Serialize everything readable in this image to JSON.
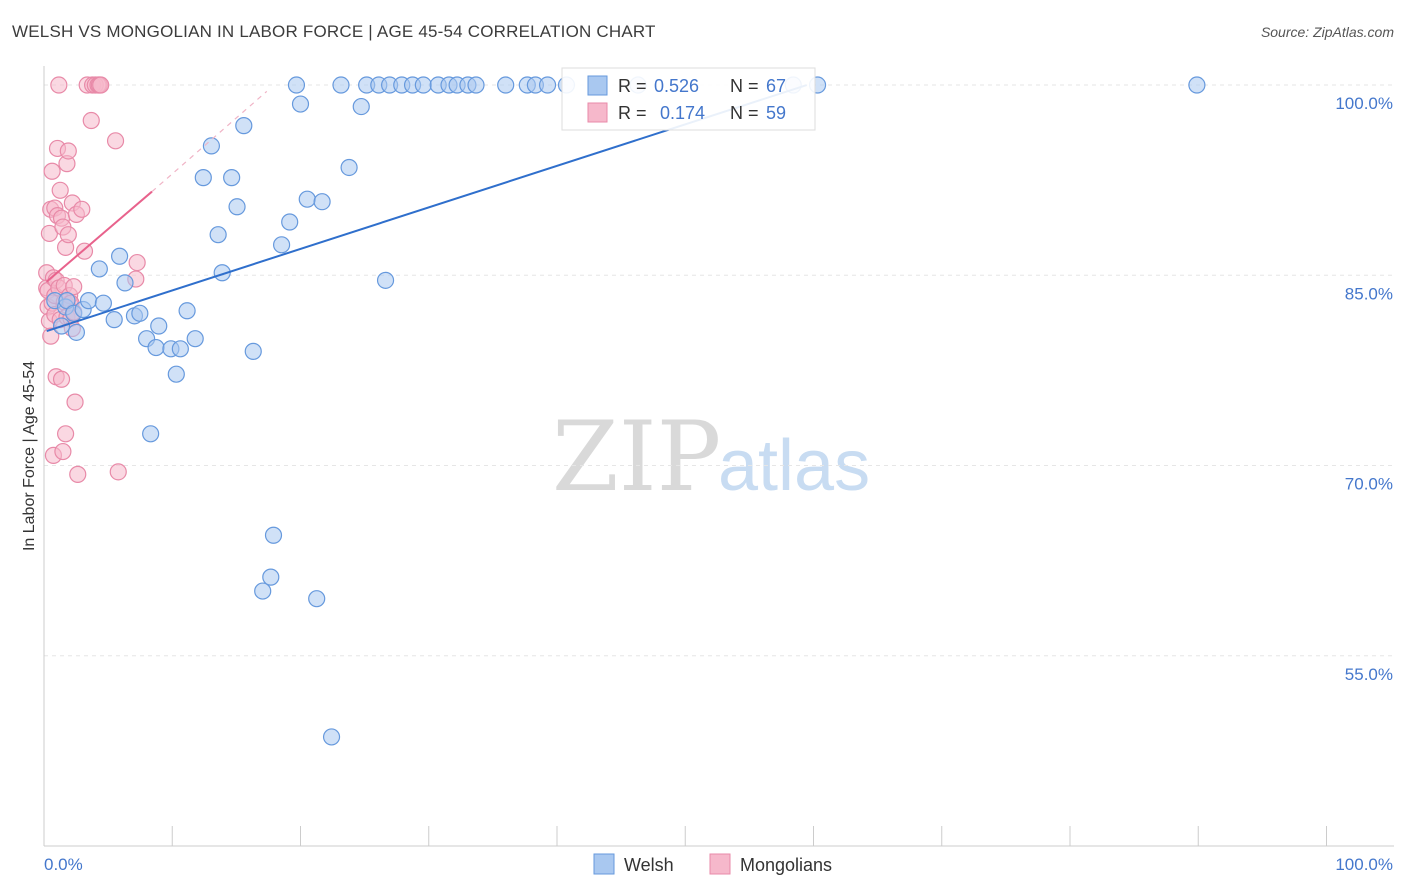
{
  "header": {
    "title": "WELSH VS MONGOLIAN IN LABOR FORCE | AGE 45-54 CORRELATION CHART",
    "source": "Source: ZipAtlas.com"
  },
  "watermark": {
    "zip": "ZIP",
    "atlas": "atlas"
  },
  "colors": {
    "welsh_fill": "#a9c8f0",
    "welsh_stroke": "#6699dd",
    "welsh_line": "#2f6fcc",
    "mongol_fill": "#f6b8cb",
    "mongol_stroke": "#e88aa8",
    "mongol_line": "#e8628c",
    "grid": "#e6e6e6"
  },
  "legend": {
    "r_label": "R =",
    "n_label": "N =",
    "rows": [
      {
        "r": "0.526",
        "n": "67"
      },
      {
        "r": "0.174",
        "n": "59"
      }
    ]
  },
  "bottom_legend": [
    "Welsh",
    "Mongolians"
  ],
  "chart_data": {
    "type": "scatter",
    "title": "WELSH VS MONGOLIAN IN LABOR FORCE | AGE 45-54 CORRELATION CHART",
    "xlabel": "",
    "ylabel": "In Labor Force | Age 45-54",
    "xlim": [
      0,
      100
    ],
    "ylim": [
      40,
      101.5
    ],
    "x_tick_labels": [
      "0.0%",
      "100.0%"
    ],
    "y_ticks": [
      100,
      85,
      70,
      55
    ],
    "y_tick_labels": [
      "100.0%",
      "85.0%",
      "70.0%",
      "55.0%"
    ],
    "grid": true,
    "legend_position": "top-center",
    "series": [
      {
        "name": "Welsh",
        "r": 0.526,
        "n": 67,
        "trend": {
          "x": [
            0.2,
            56.5
          ],
          "y": [
            80.6,
            100.0
          ]
        },
        "x": [
          0.8,
          1.3,
          1.6,
          1.7,
          2.2,
          2.4,
          2.9,
          3.3,
          4.1,
          4.4,
          5.2,
          5.6,
          6.0,
          6.7,
          7.1,
          7.6,
          7.9,
          8.3,
          8.5,
          9.4,
          9.8,
          10.1,
          10.6,
          11.2,
          11.8,
          12.4,
          12.9,
          13.2,
          13.9,
          14.3,
          14.8,
          15.5,
          16.2,
          16.8,
          17.0,
          17.6,
          18.2,
          18.7,
          19.0,
          19.5,
          20.2,
          20.6,
          21.3,
          22.0,
          22.6,
          23.5,
          23.9,
          24.8,
          25.3,
          25.6,
          26.5,
          27.3,
          28.1,
          29.2,
          30.0,
          30.6,
          31.4,
          32.0,
          34.2,
          35.8,
          36.4,
          37.3,
          38.7,
          44.0,
          55.5,
          57.3,
          85.4
        ],
        "y": [
          83.0,
          81.0,
          82.5,
          83.0,
          82.0,
          80.5,
          82.3,
          83.0,
          85.5,
          82.8,
          81.5,
          86.5,
          84.4,
          81.8,
          82.0,
          80.0,
          72.5,
          79.3,
          81.0,
          79.2,
          77.2,
          79.2,
          82.2,
          80.0,
          92.7,
          95.2,
          88.2,
          85.2,
          92.7,
          90.4,
          96.8,
          79.0,
          60.1,
          61.2,
          64.5,
          87.4,
          89.2,
          100.0,
          98.5,
          91.0,
          59.5,
          90.8,
          48.6,
          100.0,
          93.5,
          98.3,
          100.0,
          100.0,
          84.6,
          100.0,
          100.0,
          100.0,
          100.0,
          100.0,
          100.0,
          100.0,
          100.0,
          100.0,
          100.0,
          100.0,
          100.0,
          100.0,
          100.0,
          100.0,
          100.0,
          100.0,
          100.0
        ]
      },
      {
        "name": "Mongolians",
        "r": 0.174,
        "n": 59,
        "trend": {
          "x": [
            0.2,
            8.0
          ],
          "y": [
            84.5,
            91.6
          ]
        },
        "trend_dashed": {
          "x": [
            8.0,
            16.5
          ],
          "y": [
            91.6,
            99.5
          ]
        },
        "x": [
          0.2,
          0.2,
          0.3,
          0.3,
          0.4,
          0.4,
          0.5,
          0.5,
          0.6,
          0.6,
          0.7,
          0.7,
          0.8,
          0.8,
          0.8,
          0.9,
          0.9,
          1.0,
          1.0,
          1.1,
          1.1,
          1.2,
          1.2,
          1.3,
          1.3,
          1.4,
          1.4,
          1.5,
          1.5,
          1.6,
          1.6,
          1.7,
          1.7,
          1.8,
          1.8,
          1.9,
          1.9,
          2.0,
          2.0,
          2.1,
          2.1,
          2.2,
          2.2,
          2.3,
          2.4,
          2.5,
          2.8,
          3.0,
          3.2,
          3.5,
          3.6,
          3.8,
          4.0,
          4.1,
          4.2,
          5.3,
          5.5,
          6.8,
          6.9
        ],
        "y": [
          85.2,
          84.0,
          82.5,
          83.8,
          81.4,
          88.3,
          80.2,
          90.2,
          82.8,
          93.2,
          70.8,
          84.8,
          81.9,
          83.4,
          90.3,
          77.0,
          84.6,
          89.7,
          95.0,
          84.0,
          100.0,
          81.5,
          91.7,
          76.8,
          89.5,
          71.1,
          88.8,
          84.2,
          82.9,
          72.5,
          87.2,
          93.8,
          81.7,
          88.2,
          94.8,
          82.8,
          83.4,
          82.8,
          81.6,
          80.8,
          90.7,
          82.1,
          84.1,
          75.0,
          89.8,
          69.3,
          90.2,
          86.9,
          100.0,
          97.2,
          100.0,
          100.0,
          100.0,
          100.0,
          100.0,
          95.6,
          69.5,
          84.7,
          86.0
        ]
      }
    ]
  }
}
